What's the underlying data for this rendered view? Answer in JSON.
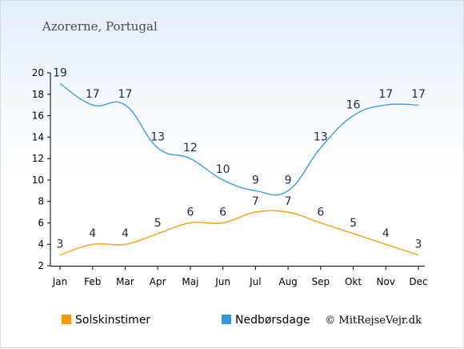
{
  "chart_data": {
    "type": "line",
    "title": "Azorerne, Portugal",
    "categories": [
      "Jan",
      "Feb",
      "Mar",
      "Apr",
      "Maj",
      "Jun",
      "Jul",
      "Aug",
      "Sep",
      "Okt",
      "Nov",
      "Dec"
    ],
    "ylim": [
      2,
      20
    ],
    "yticks": [
      2,
      4,
      6,
      8,
      10,
      12,
      14,
      16,
      18,
      20
    ],
    "grid": false,
    "legend_position": "bottom",
    "series": [
      {
        "name": "Solskinstimer",
        "color": "#ff9900",
        "values": [
          3,
          4,
          4,
          5,
          6,
          6,
          7,
          7,
          6,
          5,
          4,
          3
        ]
      },
      {
        "name": "Nedbørsdage",
        "color": "#3399dd",
        "values": [
          19,
          17,
          17,
          13,
          12,
          10,
          9,
          9,
          13,
          16,
          17,
          17
        ]
      }
    ]
  },
  "credit": "© MitRejseVejr.dk",
  "colors": {
    "axis": "#000000",
    "label": "#1d2a48"
  }
}
